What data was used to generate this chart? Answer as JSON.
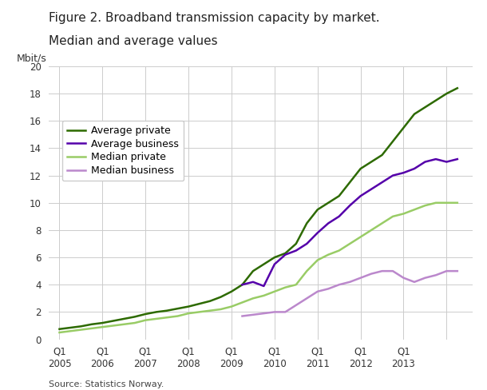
{
  "title_line1": "Figure 2. Broadband transmission capacity by market.",
  "title_line2": "Median and average values",
  "ylabel": "Mbit/s",
  "source": "Source: Statistics Norway.",
  "ylim": [
    0,
    20
  ],
  "yticks": [
    0,
    2,
    4,
    6,
    8,
    10,
    12,
    14,
    16,
    18,
    20
  ],
  "background_color": "#ffffff",
  "plot_bg_color": "#ffffff",
  "series": {
    "avg_private": {
      "label": "Average private",
      "color": "#2d6a00",
      "linewidth": 1.8,
      "x": [
        2004.5,
        2004.75,
        2005.0,
        2005.25,
        2005.5,
        2005.75,
        2006.0,
        2006.25,
        2006.5,
        2006.75,
        2007.0,
        2007.25,
        2007.5,
        2007.75,
        2008.0,
        2008.25,
        2008.5,
        2008.75,
        2009.0,
        2009.25,
        2009.5,
        2009.75,
        2010.0,
        2010.25,
        2010.5,
        2010.75,
        2011.0,
        2011.25,
        2011.5,
        2011.75,
        2012.0,
        2012.25,
        2012.5,
        2012.75,
        2013.0,
        2013.25,
        2013.5,
        2013.75
      ],
      "y": [
        0.75,
        0.85,
        0.95,
        1.1,
        1.2,
        1.35,
        1.5,
        1.65,
        1.85,
        2.0,
        2.1,
        2.25,
        2.4,
        2.6,
        2.8,
        3.1,
        3.5,
        4.0,
        5.0,
        5.5,
        6.0,
        6.3,
        7.0,
        8.5,
        9.5,
        10.0,
        10.5,
        11.5,
        12.5,
        13.0,
        13.5,
        14.5,
        15.5,
        16.5,
        17.0,
        17.5,
        18.0,
        18.4
      ]
    },
    "avg_business": {
      "label": "Average business",
      "color": "#5500aa",
      "linewidth": 1.8,
      "x": [
        2008.75,
        2009.0,
        2009.25,
        2009.5,
        2009.75,
        2010.0,
        2010.25,
        2010.5,
        2010.75,
        2011.0,
        2011.25,
        2011.5,
        2011.75,
        2012.0,
        2012.25,
        2012.5,
        2012.75,
        2013.0,
        2013.25,
        2013.5,
        2013.75
      ],
      "y": [
        4.0,
        4.2,
        3.9,
        5.5,
        6.2,
        6.5,
        7.0,
        7.8,
        8.5,
        9.0,
        9.8,
        10.5,
        11.0,
        11.5,
        12.0,
        12.2,
        12.5,
        13.0,
        13.2,
        13.0,
        13.2
      ]
    },
    "med_private": {
      "label": "Median private",
      "color": "#99cc66",
      "linewidth": 1.8,
      "x": [
        2004.5,
        2004.75,
        2005.0,
        2005.25,
        2005.5,
        2005.75,
        2006.0,
        2006.25,
        2006.5,
        2006.75,
        2007.0,
        2007.25,
        2007.5,
        2007.75,
        2008.0,
        2008.25,
        2008.5,
        2008.75,
        2009.0,
        2009.25,
        2009.5,
        2009.75,
        2010.0,
        2010.25,
        2010.5,
        2010.75,
        2011.0,
        2011.25,
        2011.5,
        2011.75,
        2012.0,
        2012.25,
        2012.5,
        2012.75,
        2013.0,
        2013.25,
        2013.5,
        2013.75
      ],
      "y": [
        0.5,
        0.6,
        0.7,
        0.8,
        0.9,
        1.0,
        1.1,
        1.2,
        1.4,
        1.5,
        1.6,
        1.7,
        1.9,
        2.0,
        2.1,
        2.2,
        2.4,
        2.7,
        3.0,
        3.2,
        3.5,
        3.8,
        4.0,
        5.0,
        5.8,
        6.2,
        6.5,
        7.0,
        7.5,
        8.0,
        8.5,
        9.0,
        9.2,
        9.5,
        9.8,
        10.0,
        10.0,
        10.0
      ]
    },
    "med_business": {
      "label": "Median business",
      "color": "#bb88cc",
      "linewidth": 1.8,
      "x": [
        2008.75,
        2009.0,
        2009.25,
        2009.5,
        2009.75,
        2010.0,
        2010.25,
        2010.5,
        2010.75,
        2011.0,
        2011.25,
        2011.5,
        2011.75,
        2012.0,
        2012.25,
        2012.5,
        2012.75,
        2013.0,
        2013.25,
        2013.5,
        2013.75
      ],
      "y": [
        1.7,
        1.8,
        1.9,
        2.0,
        2.0,
        2.5,
        3.0,
        3.5,
        3.7,
        4.0,
        4.2,
        4.5,
        4.8,
        5.0,
        5.0,
        4.5,
        4.2,
        4.5,
        4.7,
        5.0,
        5.0
      ]
    }
  },
  "xtick_positions": [
    2004.5,
    2005.5,
    2006.5,
    2007.5,
    2008.5,
    2009.5,
    2010.5,
    2011.5,
    2012.5,
    2013.5
  ],
  "xtick_labels": [
    "Q1\n2005",
    "Q1\n2006",
    "Q1\n2007",
    "Q1\n2008",
    "Q1\n2009",
    "Q1\n2010",
    "Q1\n2011",
    "Q1\n2012",
    "Q1\n2013",
    ""
  ],
  "grid_color": "#cccccc",
  "legend_fontsize": 9,
  "title_fontsize": 11,
  "source_fontsize": 8
}
